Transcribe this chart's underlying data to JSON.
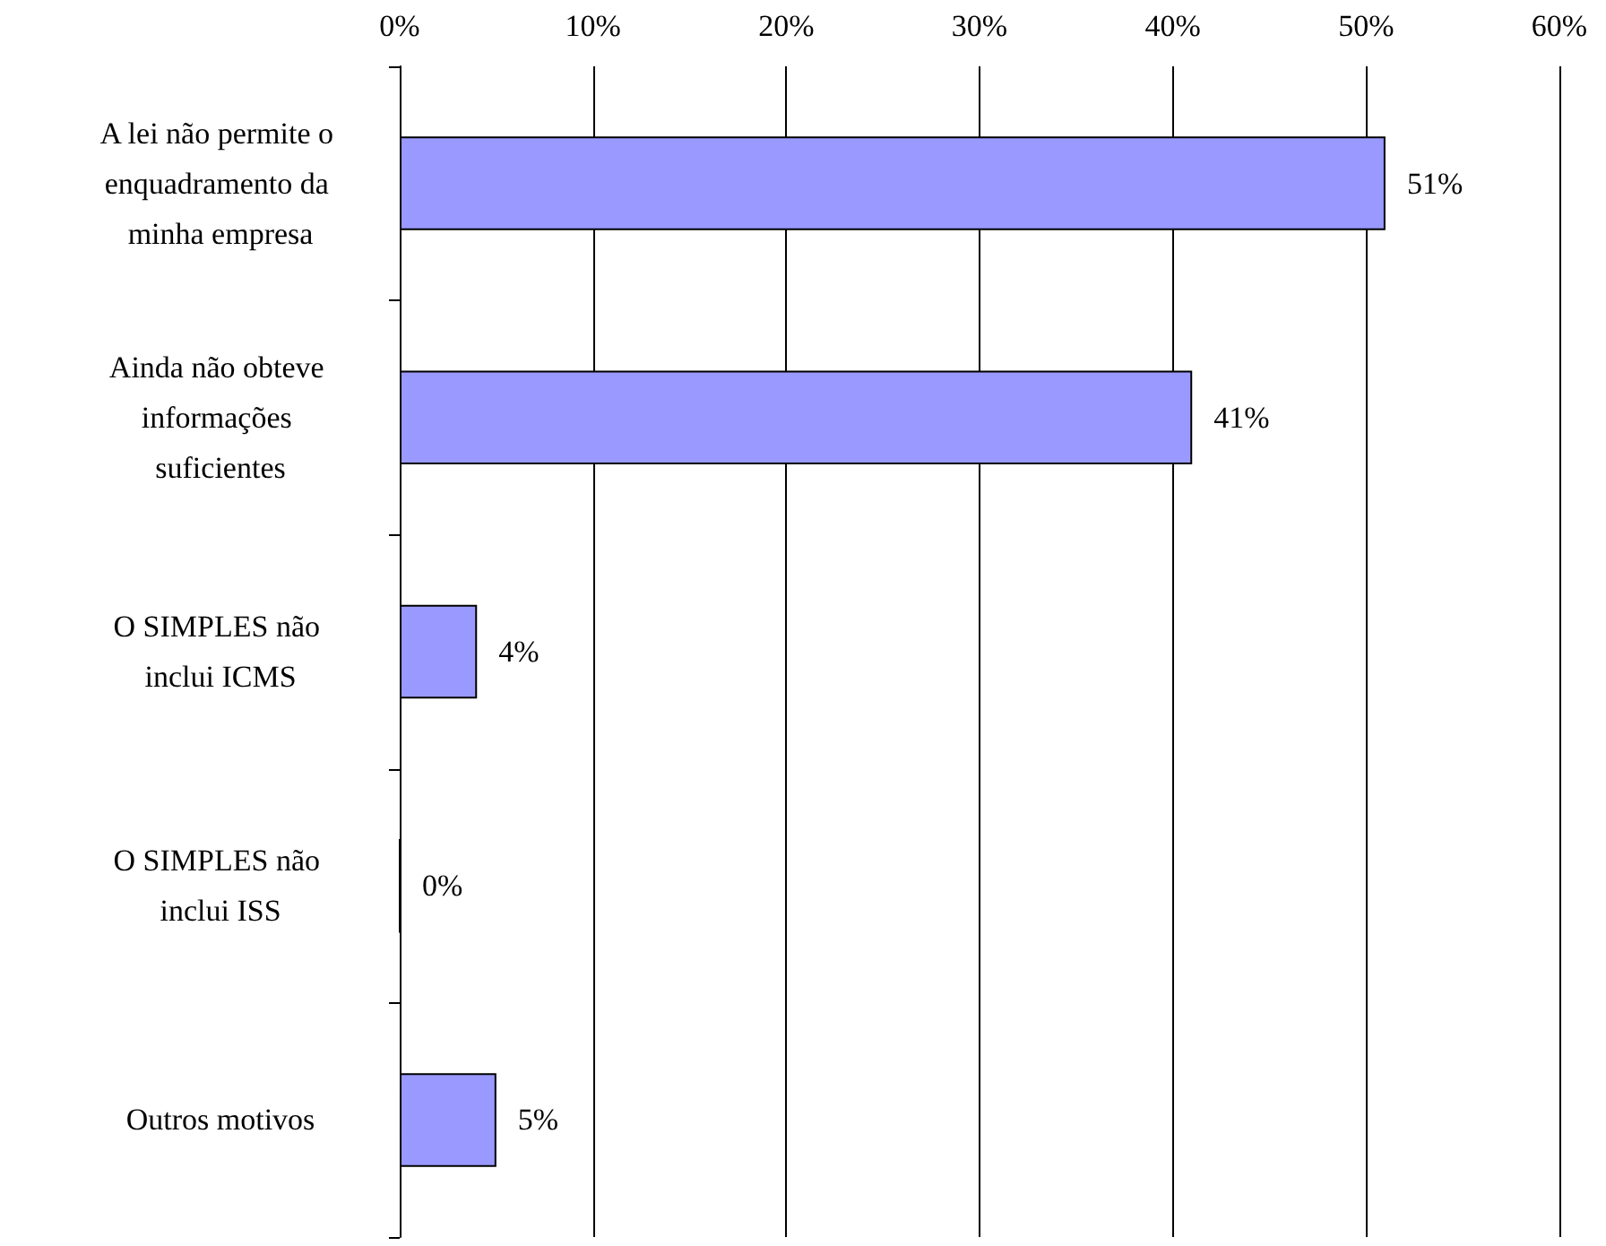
{
  "chart_data": {
    "type": "bar",
    "orientation": "horizontal",
    "categories": [
      "A lei não permite o enquadramento da minha empresa",
      "Ainda não obteve informações suficientes",
      "O SIMPLES não inclui ICMS",
      "O SIMPLES não inclui ISS",
      "Outros motivos"
    ],
    "values": [
      51,
      41,
      4,
      0,
      5
    ],
    "color": "#9999ff",
    "value_labels": [
      "51%",
      "41%",
      "4%",
      "0%",
      "5%"
    ],
    "xlim": [
      0,
      60
    ],
    "xticks": [
      {
        "value": 0,
        "label": "0%"
      },
      {
        "value": 10,
        "label": "10%"
      },
      {
        "value": 20,
        "label": "20%"
      },
      {
        "value": 30,
        "label": "30%"
      },
      {
        "value": 40,
        "label": "40%"
      },
      {
        "value": 50,
        "label": "50%"
      },
      {
        "value": 60,
        "label": "60%"
      }
    ],
    "grid": "x"
  }
}
